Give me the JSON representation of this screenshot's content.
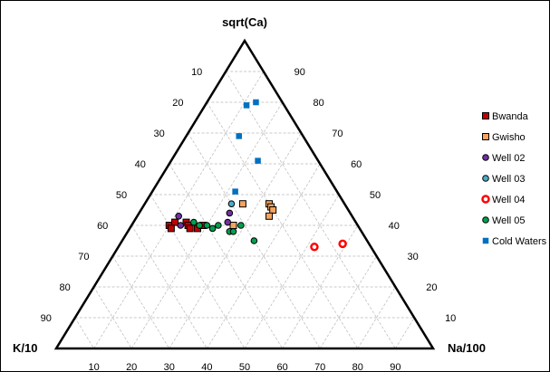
{
  "chart_data": {
    "type": "scatter",
    "subtype": "ternary",
    "axes": {
      "top": "sqrt(Ca)",
      "left": "K/10",
      "right": "Na/100"
    },
    "ticks": [
      "10",
      "20",
      "30",
      "40",
      "50",
      "60",
      "70",
      "80",
      "90"
    ],
    "grid": true,
    "legend_position": "right",
    "series": [
      {
        "name": "Bwanda",
        "marker": "square",
        "fill": "#c00000",
        "stroke": "#000000",
        "points": [
          {
            "ca": 0.4,
            "na": 0.1
          },
          {
            "ca": 0.41,
            "na": 0.11
          },
          {
            "ca": 0.41,
            "na": 0.14
          },
          {
            "ca": 0.4,
            "na": 0.15
          },
          {
            "ca": 0.39,
            "na": 0.16
          },
          {
            "ca": 0.39,
            "na": 0.18
          },
          {
            "ca": 0.4,
            "na": 0.19
          },
          {
            "ca": 0.39,
            "na": 0.11
          }
        ]
      },
      {
        "name": "Gwisho",
        "marker": "square",
        "fill": "#f4a460",
        "stroke": "#000000",
        "points": [
          {
            "ca": 0.47,
            "na": 0.26
          },
          {
            "ca": 0.47,
            "na": 0.33
          },
          {
            "ca": 0.46,
            "na": 0.34
          },
          {
            "ca": 0.45,
            "na": 0.35
          },
          {
            "ca": 0.43,
            "na": 0.35
          },
          {
            "ca": 0.4,
            "na": 0.27
          }
        ]
      },
      {
        "name": "Well 02",
        "marker": "circle",
        "fill": "#7030a0",
        "stroke": "#000000",
        "points": [
          {
            "ca": 0.43,
            "na": 0.11
          },
          {
            "ca": 0.44,
            "na": 0.24
          },
          {
            "ca": 0.41,
            "na": 0.25
          },
          {
            "ca": 0.4,
            "na": 0.13
          }
        ]
      },
      {
        "name": "Well 03",
        "marker": "circle",
        "fill": "#4bacc6",
        "stroke": "#000000",
        "points": [
          {
            "ca": 0.47,
            "na": 0.23
          }
        ]
      },
      {
        "name": "Well 04",
        "marker": "circle",
        "fill": "#ffffff",
        "stroke": "#ff0000",
        "points": [
          {
            "ca": 0.33,
            "na": 0.52
          },
          {
            "ca": 0.34,
            "na": 0.59
          }
        ]
      },
      {
        "name": "Well 05",
        "marker": "circle",
        "fill": "#00a050",
        "stroke": "#000000",
        "points": [
          {
            "ca": 0.41,
            "na": 0.16
          },
          {
            "ca": 0.4,
            "na": 0.18
          },
          {
            "ca": 0.4,
            "na": 0.2
          },
          {
            "ca": 0.39,
            "na": 0.22
          },
          {
            "ca": 0.38,
            "na": 0.27
          },
          {
            "ca": 0.4,
            "na": 0.29
          },
          {
            "ca": 0.38,
            "na": 0.28
          },
          {
            "ca": 0.35,
            "na": 0.35
          },
          {
            "ca": 0.4,
            "na": 0.23
          }
        ]
      },
      {
        "name": "Cold Waters",
        "marker": "square_small",
        "fill": "#0070c0",
        "stroke": "#0070c0",
        "points": [
          {
            "ca": 0.79,
            "na": 0.11
          },
          {
            "ca": 0.8,
            "na": 0.13
          },
          {
            "ca": 0.69,
            "na": 0.14
          },
          {
            "ca": 0.61,
            "na": 0.23
          },
          {
            "ca": 0.51,
            "na": 0.22
          }
        ]
      }
    ]
  }
}
